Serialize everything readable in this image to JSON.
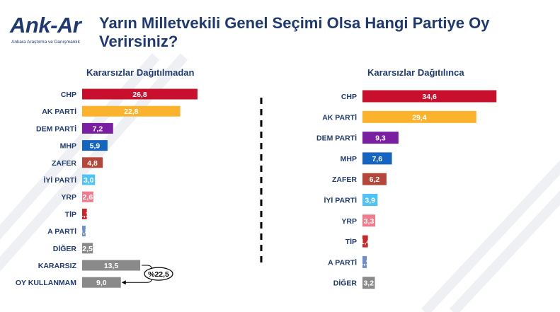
{
  "brand": {
    "logo_text": "Ank-Ar",
    "logo_subtext": "Ankara Araştırma ve Danışmanlık"
  },
  "title": "Yarın Milletvekili Genel Seçimi Olsa Hangi Partiye Oy Verirsiniz?",
  "chart_data": [
    {
      "type": "bar",
      "orientation": "horizontal",
      "title": "Kararsızlar Dağıtılmadan",
      "categories": [
        "CHP",
        "AK PARTİ",
        "DEM PARTİ",
        "MHP",
        "ZAFER",
        "İYİ PARTİ",
        "YRP",
        "TİP",
        "A PARTİ",
        "DİĞER",
        "KARARSIZ",
        "OY KULLANMAM"
      ],
      "values": [
        26.8,
        22.8,
        7.2,
        5.9,
        4.8,
        3.0,
        2.6,
        1.1,
        0.8,
        2.5,
        13.5,
        9.0
      ],
      "value_labels": [
        "26,8",
        "22,8",
        "7,2",
        "5,9",
        "4,8",
        "3,0",
        "2,6",
        "1,1",
        "0,8",
        "2,5",
        "13,5",
        "9,0"
      ],
      "colors": [
        "#c8102e",
        "#fbb32d",
        "#7b1fa2",
        "#1565c0",
        "#b5473a",
        "#4fc3f7",
        "#ef7b8d",
        "#c62828",
        "#6f8fc8",
        "#8a8a8a",
        "#8a8a8a",
        "#8a8a8a"
      ],
      "annotation": "%22,5"
    },
    {
      "type": "bar",
      "orientation": "horizontal",
      "title": "Kararsızlar Dağıtılınca",
      "categories": [
        "CHP",
        "AK PARTİ",
        "DEM PARTİ",
        "MHP",
        "ZAFER",
        "İYİ PARTİ",
        "YRP",
        "TİP",
        "A PARTİ",
        "DİĞER"
      ],
      "values": [
        34.6,
        29.4,
        9.3,
        7.6,
        6.2,
        3.9,
        3.3,
        1.4,
        1.1,
        3.2
      ],
      "value_labels": [
        "34,6",
        "29,4",
        "9,3",
        "7,6",
        "6,2",
        "3,9",
        "3,3",
        "1,4",
        "1,1",
        "3,2"
      ],
      "colors": [
        "#c8102e",
        "#fbb32d",
        "#7b1fa2",
        "#1565c0",
        "#b5473a",
        "#4fc3f7",
        "#ef7b8d",
        "#c62828",
        "#6f8fc8",
        "#8a8a8a"
      ]
    }
  ]
}
